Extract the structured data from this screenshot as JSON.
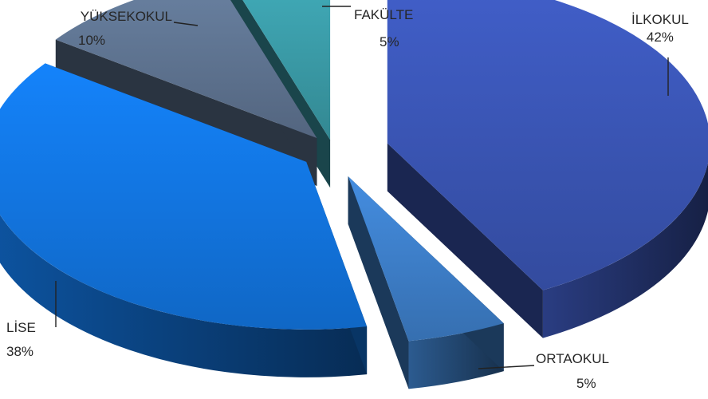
{
  "chart_data": {
    "type": "pie",
    "style": "3d-exploded",
    "slices": [
      {
        "label": "İLKOKUL",
        "pct_label": "42%",
        "value": 42,
        "color": "#3a55b4"
      },
      {
        "label": "ORTAOKUL",
        "pct_label": "5%",
        "value": 5,
        "color": "#3d7ec8"
      },
      {
        "label": "LİSE",
        "pct_label": "38%",
        "value": 38,
        "color": "#1275e0"
      },
      {
        "label": "YÜKSEKOKUL",
        "pct_label": "10%",
        "value": 10,
        "color": "#5e7390"
      },
      {
        "label": "FAKÜLTE",
        "pct_label": "5%",
        "value": 5,
        "color": "#3a9aa6"
      }
    ]
  }
}
